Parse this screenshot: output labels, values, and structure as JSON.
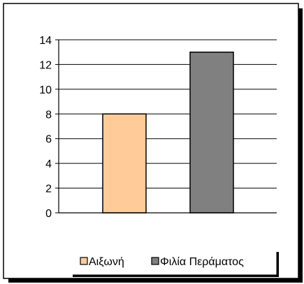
{
  "chart_data": {
    "type": "bar",
    "categories": [
      "Αιξωνή",
      "Φιλία Περάματος"
    ],
    "values": [
      8,
      13
    ],
    "colors": [
      "#FFCC99",
      "#808080"
    ],
    "ylim": [
      0,
      14
    ],
    "yticks": [
      "0",
      "2",
      "4",
      "6",
      "8",
      "10",
      "12",
      "14"
    ],
    "grid": true,
    "legend_position": "bottom",
    "legend": [
      "Αιξωνή",
      "Φιλία Περάματος"
    ]
  }
}
